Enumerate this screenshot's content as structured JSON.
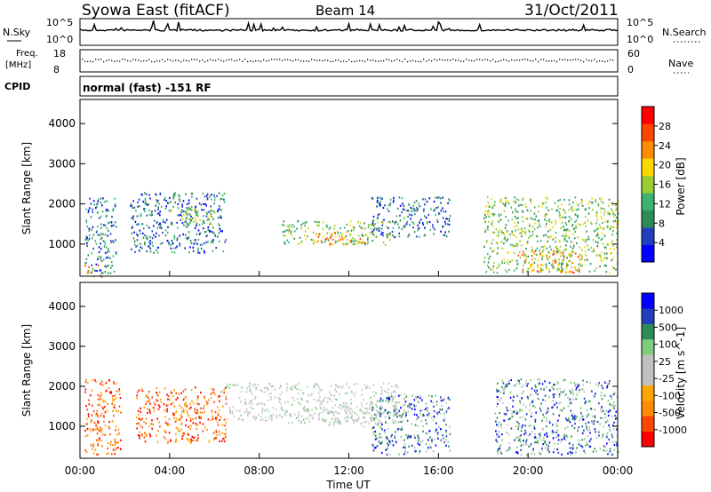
{
  "header": {
    "title": "Syowa East (fitACF)",
    "beam": "Beam 14",
    "date": "31/Oct/2011"
  },
  "top_panels": {
    "nsky_label": "N.Sky",
    "nsky_ticks": [
      "10^5",
      "10^0"
    ],
    "nsearch_label": "N.Search",
    "nsearch_ticks": [
      "10^5",
      "10^0"
    ],
    "freq_label": "Freq.",
    "freq_unit": "[MHz]",
    "freq_ticks": [
      "18",
      "8"
    ],
    "nave_label": "Nave",
    "nave_ticks": [
      "60",
      "0"
    ],
    "cpid_label": "CPID",
    "cpid_text": "normal (fast) -151 RF"
  },
  "chart_data": [
    {
      "type": "heatmap",
      "name": "power",
      "ylabel": "Slant Range [km]",
      "ylim": [
        200,
        4600
      ],
      "yticks": [
        "4000",
        "3000",
        "2000",
        "1000"
      ],
      "xlim": [
        "00:00",
        "24:00"
      ],
      "colorbar_label": "Power [dB]",
      "colorbar_ticks": [
        "28",
        "24",
        "20",
        "16",
        "12",
        "8",
        "4"
      ],
      "colors": [
        "#0000ff",
        "#1f3fbf",
        "#2e8b57",
        "#3cb371",
        "#9acd32",
        "#ffd700",
        "#ff8c00",
        "#ff4500",
        "#ff0000"
      ],
      "regions": [
        {
          "t": [
            0.2,
            1.6
          ],
          "r": [
            300,
            2200
          ],
          "level": "low"
        },
        {
          "t": [
            0.2,
            1.0
          ],
          "r": [
            200,
            500
          ],
          "level": "high"
        },
        {
          "t": [
            2.2,
            6.5
          ],
          "r": [
            800,
            2300
          ],
          "level": "low"
        },
        {
          "t": [
            4.0,
            6.0
          ],
          "r": [
            1500,
            1900
          ],
          "level": "mid"
        },
        {
          "t": [
            9.0,
            14.0
          ],
          "r": [
            1000,
            1600
          ],
          "level": "mid"
        },
        {
          "t": [
            10.5,
            13.0
          ],
          "r": [
            1000,
            1300
          ],
          "level": "high"
        },
        {
          "t": [
            13.0,
            16.5
          ],
          "r": [
            1200,
            2200
          ],
          "level": "low"
        },
        {
          "t": [
            18.0,
            24.0
          ],
          "r": [
            300,
            2200
          ],
          "level": "mid"
        },
        {
          "t": [
            19.5,
            22.5
          ],
          "r": [
            300,
            900
          ],
          "level": "high"
        }
      ]
    },
    {
      "type": "heatmap",
      "name": "velocity",
      "ylabel": "Slant Range [km]",
      "xlabel": "Time UT",
      "ylim": [
        200,
        4600
      ],
      "yticks": [
        "4000",
        "3000",
        "2000",
        "1000"
      ],
      "xticks": [
        "00:00",
        "04:00",
        "08:00",
        "12:00",
        "16:00",
        "20:00",
        "00:00"
      ],
      "colorbar_label": "Velocity [m s^-1]",
      "colorbar_ticks": [
        "1000",
        "500",
        "100",
        "25",
        "-25",
        "-100",
        "-500",
        "-1000"
      ],
      "colors": [
        "#ff0000",
        "#ff4500",
        "#ff8c00",
        "#ffa500",
        "#c0c0c0",
        "#c0c0c0",
        "#7ccd7c",
        "#2e8b57",
        "#1f3fbf",
        "#0000ff"
      ],
      "regions": [
        {
          "t": [
            0.2,
            1.8
          ],
          "r": [
            300,
            2200
          ],
          "v": "neg"
        },
        {
          "t": [
            2.5,
            6.5
          ],
          "r": [
            600,
            2000
          ],
          "v": "neg"
        },
        {
          "t": [
            6.5,
            14.5
          ],
          "r": [
            1100,
            2100
          ],
          "v": "zero"
        },
        {
          "t": [
            11.0,
            13.5
          ],
          "r": [
            1000,
            1400
          ],
          "v": "zero"
        },
        {
          "t": [
            13.0,
            16.5
          ],
          "r": [
            300,
            1800
          ],
          "v": "pos"
        },
        {
          "t": [
            18.5,
            24.0
          ],
          "r": [
            300,
            2200
          ],
          "v": "pos"
        }
      ]
    }
  ]
}
